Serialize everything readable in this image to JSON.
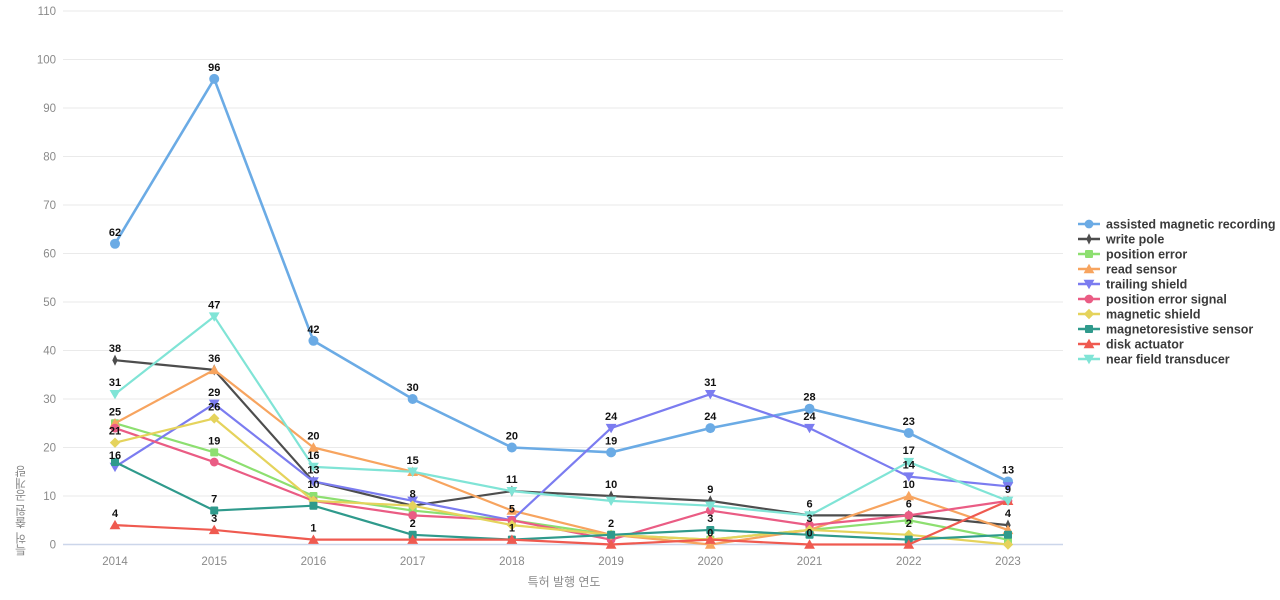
{
  "chart_data": {
    "type": "line",
    "title": "",
    "xlabel": "특허 발행 연도",
    "ylabel": "특허 출원 공개량",
    "x": [
      "2014",
      "2015",
      "2016",
      "2017",
      "2018",
      "2019",
      "2020",
      "2021",
      "2022",
      "2023"
    ],
    "ylim": [
      0,
      110
    ],
    "ytick_step": 10,
    "grid": true,
    "legend_position": "right",
    "colors": {
      "grid": "#eaeaea",
      "axis_line": "#ccd6ea",
      "tick_text": "#8a8a8a",
      "legend_text": "#3a3a3a",
      "label_text": "#111111"
    },
    "series": [
      {
        "name": "assisted magnetic recording",
        "color": "#6babe5",
        "marker": "circle",
        "values": [
          62,
          96,
          42,
          30,
          20,
          19,
          24,
          28,
          23,
          13
        ],
        "labels": [
          "62",
          "96",
          "42",
          "30",
          "20",
          "19",
          "24",
          "28",
          "23",
          "13"
        ]
      },
      {
        "name": "write pole",
        "color": "#4d4d4d",
        "marker": "thin-diamond",
        "values": [
          38,
          36,
          13,
          8,
          11,
          10,
          9,
          6,
          6,
          4
        ],
        "labels": [
          "38",
          "",
          "",
          "8",
          "",
          "10",
          "9",
          "6",
          "6",
          "4"
        ]
      },
      {
        "name": "position error",
        "color": "#8ddf70",
        "marker": "square",
        "values": [
          25,
          19,
          10,
          7,
          5,
          2,
          1,
          3,
          5,
          1
        ],
        "labels": [
          "25",
          "19",
          "10",
          "",
          "",
          "",
          "",
          "",
          "",
          ""
        ]
      },
      {
        "name": "read sensor",
        "color": "#f7a45f",
        "marker": "triangle-up",
        "values": [
          25,
          36,
          20,
          15,
          7,
          2,
          0,
          3,
          10,
          3
        ],
        "labels": [
          "",
          "36",
          "20",
          "15",
          "",
          "",
          "0",
          "3",
          "10",
          ""
        ]
      },
      {
        "name": "trailing shield",
        "color": "#7b7cf0",
        "marker": "triangle-down",
        "values": [
          16,
          29,
          13,
          9,
          5,
          24,
          31,
          24,
          14,
          12
        ],
        "labels": [
          "16",
          "29",
          "13",
          "",
          "5",
          "24",
          "31",
          "24",
          "14",
          ""
        ]
      },
      {
        "name": "position error signal",
        "color": "#ea5c84",
        "marker": "circle",
        "values": [
          24,
          17,
          9,
          6,
          5,
          1,
          7,
          4,
          6,
          9
        ],
        "labels": [
          "",
          "",
          "",
          "",
          "",
          "",
          "",
          "",
          "",
          ""
        ]
      },
      {
        "name": "magnetic shield",
        "color": "#e5d35c",
        "marker": "diamond",
        "values": [
          21,
          26,
          9,
          8,
          4,
          2,
          1,
          3,
          2,
          0
        ],
        "labels": [
          "21",
          "26",
          "",
          "",
          "",
          "",
          "",
          "",
          "2",
          ""
        ]
      },
      {
        "name": "magnetoresistive sensor",
        "color": "#2f9a8c",
        "marker": "square",
        "values": [
          17,
          7,
          8,
          2,
          1,
          2,
          3,
          2,
          1,
          2
        ],
        "labels": [
          "",
          "7",
          "",
          "2",
          "1",
          "2",
          "3",
          "",
          "",
          ""
        ]
      },
      {
        "name": "disk actuator",
        "color": "#ef5a50",
        "marker": "triangle-up",
        "values": [
          4,
          3,
          1,
          1,
          1,
          0,
          1,
          0,
          0,
          9
        ],
        "labels": [
          "4",
          "3",
          "1",
          "",
          "",
          "",
          "",
          "0",
          "",
          ""
        ]
      },
      {
        "name": "near field transducer",
        "color": "#80e4d6",
        "marker": "triangle-down",
        "values": [
          31,
          47,
          16,
          15,
          11,
          9,
          8,
          6,
          17,
          9
        ],
        "labels": [
          "31",
          "47",
          "16",
          "",
          "11",
          "",
          "",
          "",
          "17",
          "9"
        ]
      }
    ]
  }
}
